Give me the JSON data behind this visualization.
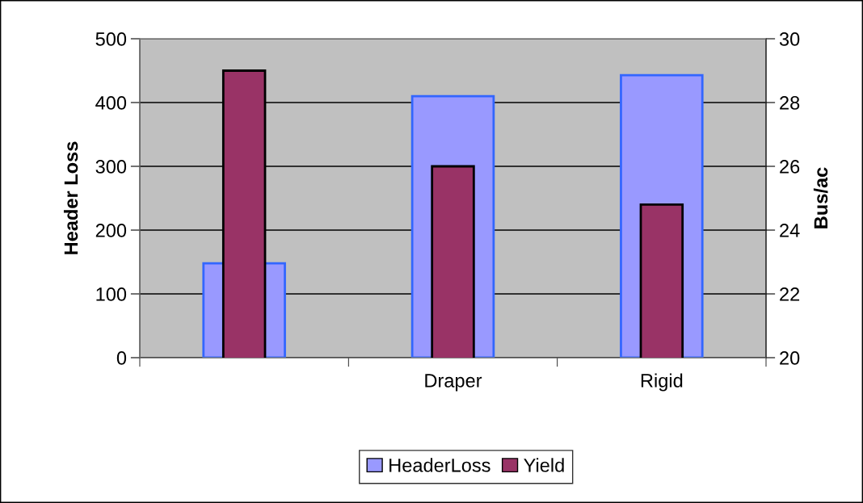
{
  "chart_data": {
    "type": "bar",
    "categories": [
      null,
      "Draper",
      "Rigid"
    ],
    "series": [
      {
        "name": "HeaderLoss",
        "color": "#9999ff",
        "values": [
          148,
          410,
          443
        ]
      },
      {
        "name": "Yield",
        "color": "#993366",
        "values": [
          29,
          26,
          24.8
        ],
        "axis": "y2"
      }
    ],
    "ylabel": "Header Loss",
    "y2label": "Bus/ac",
    "ylim": [
      0,
      500
    ],
    "yticks": [
      0,
      100,
      200,
      300,
      400,
      500
    ],
    "y2lim": [
      20,
      30
    ],
    "y2ticks": [
      20,
      22,
      24,
      26,
      28,
      30
    ],
    "grid": "y",
    "legend": "bottom"
  }
}
